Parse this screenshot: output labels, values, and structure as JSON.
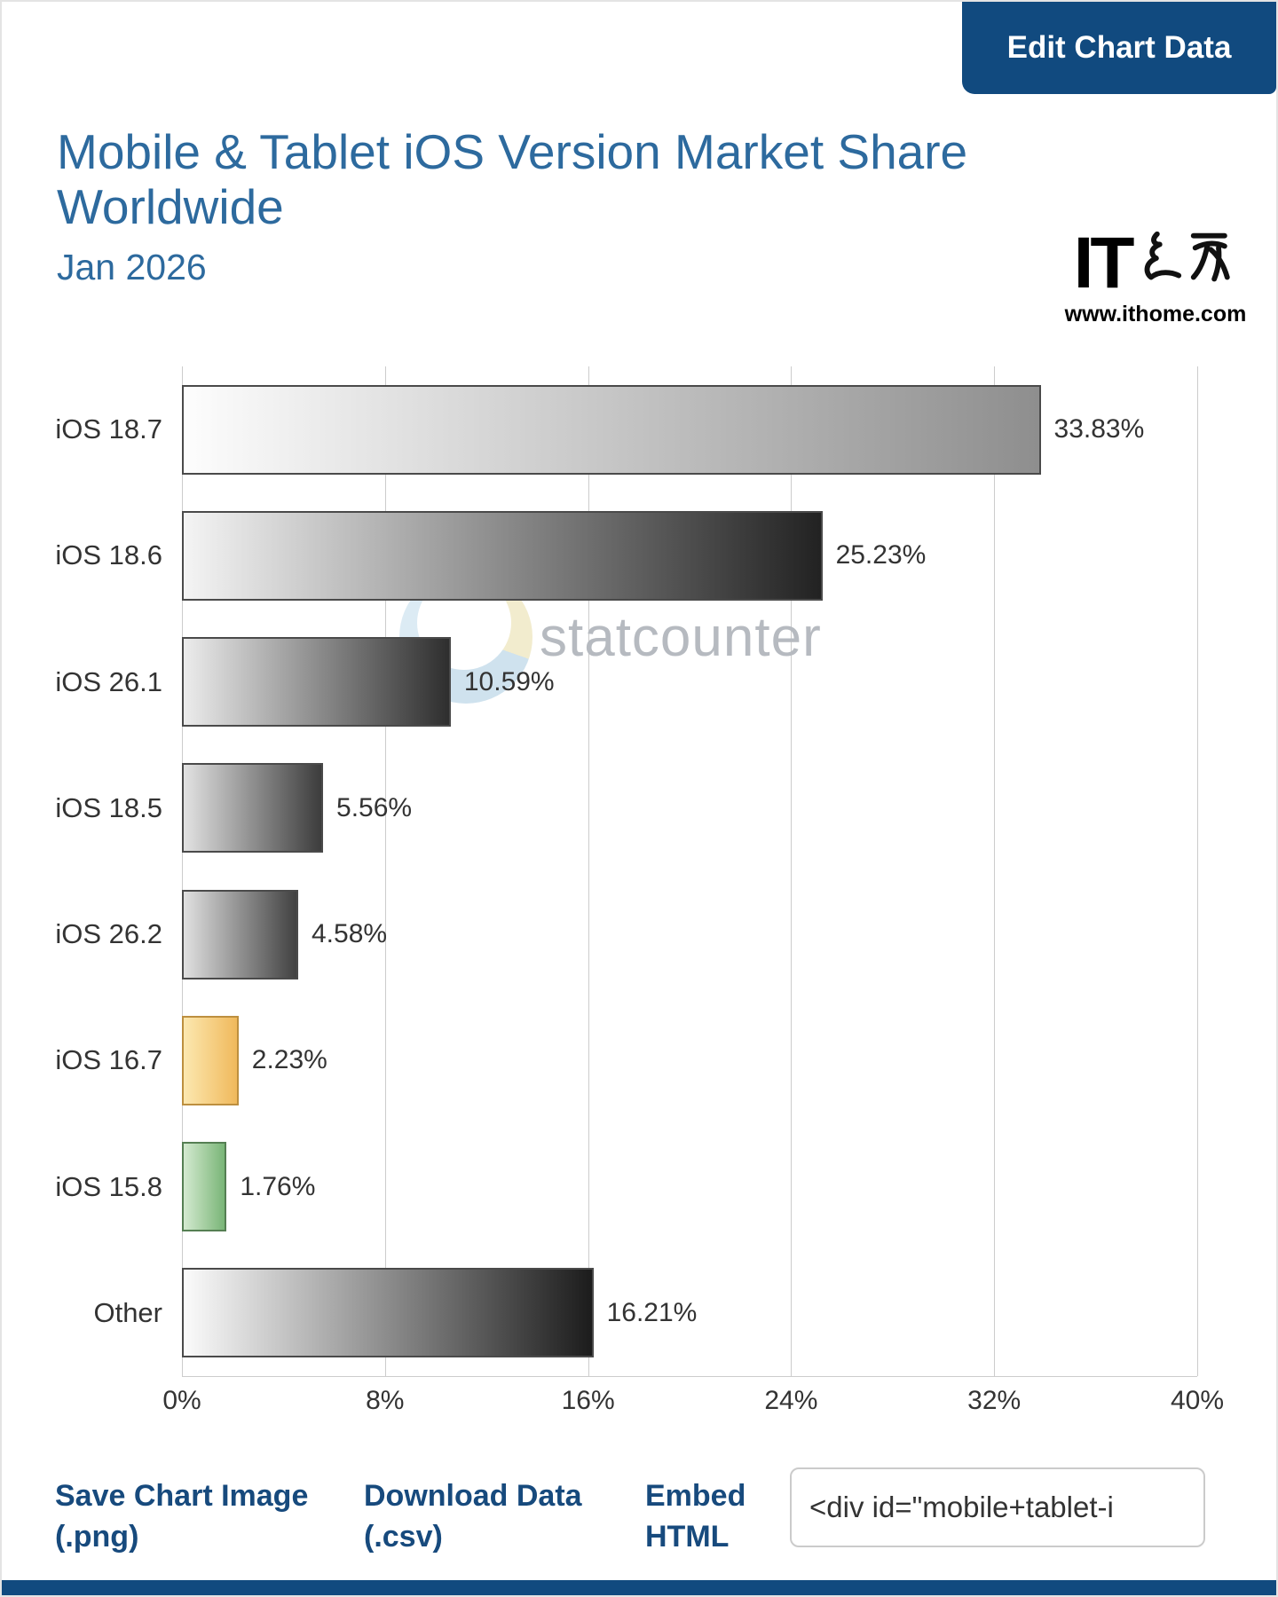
{
  "page": {
    "edit_button": "Edit Chart Data",
    "watermark": "statcounter",
    "logo": {
      "mark": "IT",
      "url": "www.ithome.com"
    },
    "footer": {
      "save": "Save Chart Image (.png)",
      "download": "Download Data (.csv)",
      "embed": "Embed HTML",
      "embed_code": "<div id=\"mobile+tablet-i"
    }
  },
  "chart_data": {
    "type": "bar",
    "orientation": "horizontal",
    "title": "Mobile & Tablet iOS Version Market Share Worldwide",
    "subtitle": "Jan 2026",
    "categories": [
      "iOS 18.7",
      "iOS 18.6",
      "iOS 26.1",
      "iOS 18.5",
      "iOS 26.2",
      "iOS 16.7",
      "iOS 15.8",
      "Other"
    ],
    "values": [
      33.83,
      25.23,
      10.59,
      5.56,
      4.58,
      2.23,
      1.76,
      16.21
    ],
    "labels": [
      "33.83%",
      "25.23%",
      "10.59%",
      "5.56%",
      "4.58%",
      "2.23%",
      "1.76%",
      "16.21%"
    ],
    "xlim": [
      0,
      40
    ],
    "x_ticks": [
      "0%",
      "8%",
      "16%",
      "24%",
      "32%",
      "40%"
    ],
    "grid": true,
    "legend": "none",
    "bar_styles": [
      {
        "from": "#fdfdfd",
        "to": "#8e8e8e",
        "border": "#4a4a4a"
      },
      {
        "from": "#f4f4f4",
        "to": "#222222",
        "border": "#4a4a4a"
      },
      {
        "from": "#ececec",
        "to": "#2e2e2e",
        "border": "#4a4a4a"
      },
      {
        "from": "#e2e2e2",
        "to": "#3c3c3c",
        "border": "#4a4a4a"
      },
      {
        "from": "#e0e0e0",
        "to": "#414141",
        "border": "#4a4a4a"
      },
      {
        "from": "#fce8b0",
        "to": "#f0b95c",
        "border": "#bd8f3f"
      },
      {
        "from": "#d4ead0",
        "to": "#79b577",
        "border": "#557f53"
      },
      {
        "from": "#fbfbfb",
        "to": "#1c1c1c",
        "border": "#4a4a4a"
      }
    ],
    "accent_colors": {
      "title_blue": "#2d6a9e",
      "navy": "#114a7f",
      "gridline": "#cccccc",
      "text": "#333333"
    }
  }
}
